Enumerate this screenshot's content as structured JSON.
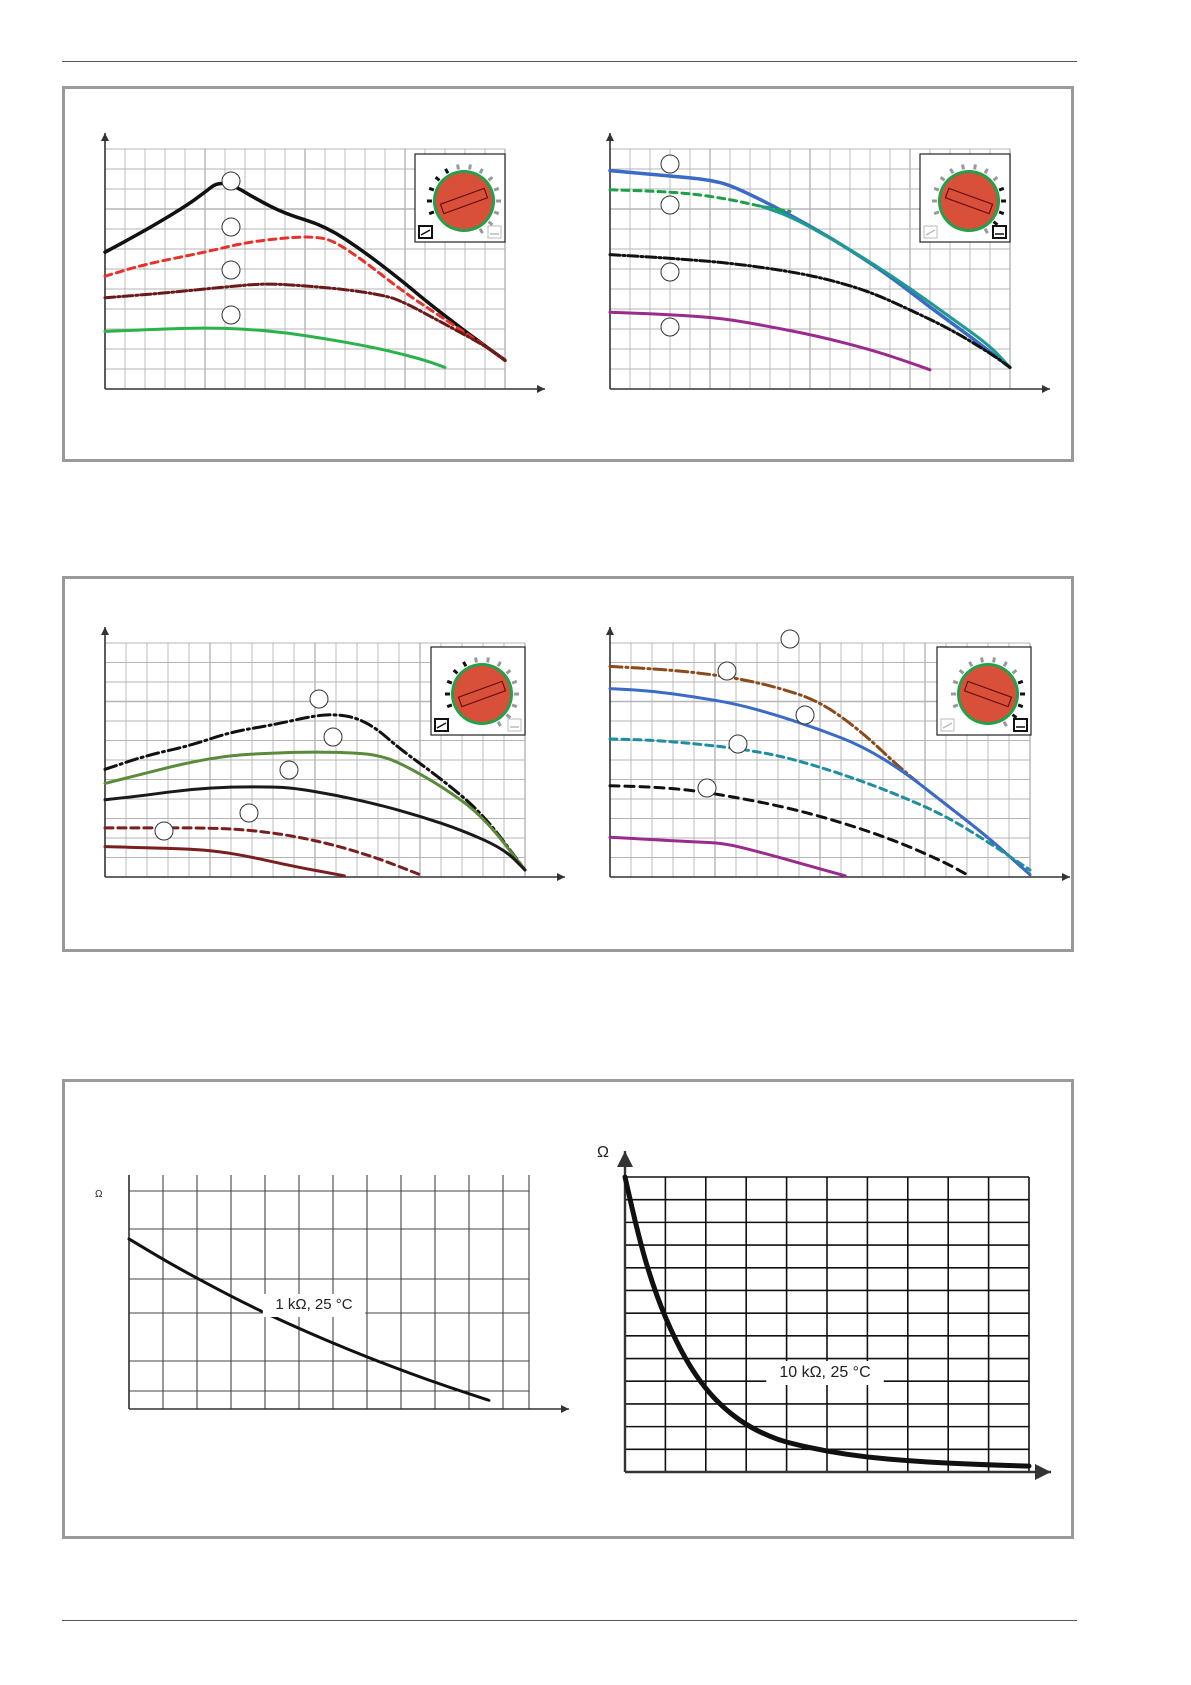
{
  "colors": {
    "frame": "#9a9a9a",
    "grid": "#b5b5b5",
    "axis": "#333333",
    "dial_red": "#d9503a",
    "dial_green": "#25a04a",
    "dial_black": "#111111"
  },
  "page": {
    "top_rule": "",
    "bottom_rule": ""
  },
  "chart_data": [
    {
      "id": "pump-proportional-pressure",
      "type": "line",
      "panel": 1,
      "markers": 4,
      "dial": {
        "icon": "proportional-pressure-icon",
        "mode": "proportional"
      },
      "series": [
        {
          "color": "#111111",
          "dash": "solid",
          "width": 3.5,
          "x": [
            0,
            10,
            20,
            25,
            28,
            32,
            38,
            45,
            55,
            65,
            75,
            80,
            90,
            100
          ],
          "y": [
            57,
            66,
            76,
            82,
            86,
            85,
            79,
            73,
            68,
            57,
            44,
            37,
            24,
            12
          ]
        },
        {
          "color": "#e8312a",
          "dash": "7,5",
          "width": 3,
          "x": [
            0,
            10,
            25,
            35,
            45,
            52,
            57,
            65,
            75,
            85,
            95,
            100
          ],
          "y": [
            47,
            52,
            57,
            61,
            63,
            63.5,
            62,
            53,
            40,
            29,
            18,
            12
          ]
        },
        {
          "color": "#6a1a1a",
          "dash": "10,3,2,3",
          "width": 3,
          "x": [
            0,
            15,
            30,
            40,
            50,
            60,
            70,
            75,
            85,
            95,
            100
          ],
          "y": [
            38,
            40,
            42.5,
            44,
            43,
            41.5,
            39,
            36,
            27,
            18,
            12
          ]
        },
        {
          "color": "#2ab24c",
          "dash": "solid",
          "width": 3,
          "x": [
            0,
            15,
            25,
            35,
            45,
            55,
            65,
            72,
            80,
            85
          ],
          "y": [
            24,
            25,
            25.5,
            25,
            23.5,
            21,
            18,
            15.5,
            12,
            9
          ]
        }
      ]
    },
    {
      "id": "pump-constant-pressure",
      "type": "line",
      "panel": 1,
      "markers": 4,
      "dial": {
        "icon": "constant-pressure-icon",
        "mode": "constant"
      },
      "series": [
        {
          "color": "#3a6bc6",
          "dash": "solid",
          "width": 3.5,
          "x": [
            0,
            10,
            20,
            25,
            30,
            40,
            50,
            60,
            70,
            80,
            90,
            100
          ],
          "y": [
            91,
            89.5,
            88,
            87,
            85,
            77,
            68,
            58,
            47,
            34,
            22,
            9
          ]
        },
        {
          "color": "#1ea04a",
          "dash": "7,5",
          "width": 3,
          "x": [
            0,
            10,
            20,
            30,
            38,
            45
          ],
          "y": [
            83,
            82.5,
            81.5,
            79,
            76,
            74
          ]
        },
        {
          "color": "#1f9a8f",
          "dash": "solid",
          "width": 3,
          "x": [
            38,
            45,
            55,
            65,
            75,
            85,
            95,
            100
          ],
          "y": [
            76,
            72,
            63,
            53,
            42,
            30,
            18,
            9
          ]
        },
        {
          "color": "#111111",
          "dash": "10,3,2,3",
          "width": 3,
          "x": [
            0,
            15,
            30,
            45,
            55,
            65,
            75,
            85,
            95,
            100
          ],
          "y": [
            56,
            54.5,
            52.5,
            49,
            45.5,
            40.5,
            33,
            25,
            15,
            9
          ]
        },
        {
          "color": "#9a2a8c",
          "dash": "solid",
          "width": 3,
          "x": [
            0,
            15,
            28,
            40,
            52,
            65,
            75,
            80
          ],
          "y": [
            32,
            31,
            29.5,
            26,
            22,
            16.5,
            11,
            8
          ]
        }
      ]
    },
    {
      "id": "pump-proportional-pressure-ext",
      "type": "line",
      "panel": 2,
      "markers": 5,
      "dial": {
        "icon": "proportional-pressure-icon",
        "mode": "proportional"
      },
      "series": [
        {
          "color": "#111111",
          "dash": "12,4,2,4",
          "width": 3,
          "x": [
            0,
            10,
            20,
            30,
            40,
            50,
            55,
            60,
            65,
            70,
            80,
            90,
            100
          ],
          "y": [
            46,
            52,
            56,
            62,
            65,
            69,
            69.5,
            68,
            63,
            55,
            42,
            27,
            3
          ]
        },
        {
          "color": "#5a8a3a",
          "dash": "solid",
          "width": 3,
          "x": [
            0,
            10,
            20,
            30,
            40,
            50,
            60,
            65,
            70,
            80,
            90,
            100
          ],
          "y": [
            40,
            44.5,
            49,
            52,
            53,
            53.5,
            53,
            52,
            49,
            39,
            26,
            3
          ]
        },
        {
          "color": "#1a1a1a",
          "dash": "solid",
          "width": 3,
          "x": [
            0,
            10,
            20,
            30,
            40,
            45,
            55,
            65,
            75,
            85,
            95,
            100
          ],
          "y": [
            33,
            35,
            37.5,
            38.5,
            38.5,
            38,
            35,
            31,
            26,
            20,
            12,
            3
          ]
        },
        {
          "color": "#7a1f1f",
          "dash": "8,5",
          "width": 3,
          "x": [
            0,
            10,
            25,
            35,
            45,
            55,
            65,
            75
          ],
          "y": [
            21,
            21,
            21,
            20,
            17.5,
            13.5,
            8,
            1
          ]
        },
        {
          "color": "#7a1f1f",
          "dash": "solid",
          "width": 3,
          "x": [
            0,
            10,
            20,
            27,
            35,
            45,
            57
          ],
          "y": [
            13,
            12.5,
            12,
            11,
            8.5,
            4.5,
            0.5
          ]
        }
      ]
    },
    {
      "id": "pump-constant-pressure-ext",
      "type": "line",
      "panel": 2,
      "markers": 5,
      "dial": {
        "icon": "constant-pressure-icon",
        "mode": "constant"
      },
      "series": [
        {
          "color": "#8a4a1a",
          "dash": "12,4,2,4",
          "width": 3,
          "x": [
            0,
            10,
            20,
            30,
            40,
            50,
            60,
            70,
            80,
            90,
            100
          ],
          "y": [
            90,
            89,
            87.5,
            85,
            81,
            75,
            62,
            45,
            31,
            17,
            1
          ]
        },
        {
          "color": "#3a6bc6",
          "dash": "solid",
          "width": 3,
          "x": [
            0,
            10,
            20,
            30,
            40,
            50,
            60,
            70,
            80,
            90,
            100
          ],
          "y": [
            80.5,
            79.5,
            77,
            74,
            69,
            63,
            56,
            45,
            31,
            17,
            1
          ]
        },
        {
          "color": "#1f8fa0",
          "dash": "7,5",
          "width": 3,
          "x": [
            0,
            10,
            20,
            30,
            40,
            50,
            60,
            70,
            80,
            90,
            100
          ],
          "y": [
            59,
            58.5,
            57,
            55,
            52,
            47,
            41,
            34,
            26,
            15,
            3
          ]
        },
        {
          "color": "#111111",
          "dash": "9,6",
          "width": 3,
          "x": [
            0,
            10,
            20,
            30,
            40,
            50,
            60,
            70,
            80,
            85
          ],
          "y": [
            39,
            38.5,
            37,
            34,
            30.5,
            26,
            20.5,
            14,
            6,
            1
          ]
        },
        {
          "color": "#9a2a8c",
          "dash": "solid",
          "width": 3,
          "x": [
            0,
            10,
            20,
            27,
            35,
            45,
            56
          ],
          "y": [
            17,
            16,
            15,
            14.5,
            11,
            6,
            0.5
          ]
        }
      ]
    },
    {
      "id": "ntc-1k",
      "type": "line",
      "panel": 3,
      "curve_label": "1 kΩ, 25 °C",
      "y_axis_label": "Ω",
      "series": [
        {
          "color": "#111111",
          "dash": "solid",
          "width": 3,
          "x": [
            0,
            10,
            20,
            30,
            40,
            50,
            60,
            70,
            80,
            90
          ],
          "y": [
            78,
            67,
            57,
            47.5,
            39,
            31,
            23.5,
            16.5,
            10,
            4
          ]
        }
      ]
    },
    {
      "id": "ntc-10k",
      "type": "line",
      "panel": 3,
      "curve_label": "10 kΩ, 25 °C",
      "y_axis_label": "Ω",
      "series": [
        {
          "color": "#111111",
          "dash": "solid",
          "width": 5,
          "x": [
            0,
            3,
            6,
            10,
            15,
            20,
            25,
            30,
            35,
            40,
            50,
            60,
            70,
            80,
            90,
            100
          ],
          "y": [
            100,
            82,
            67,
            52,
            38,
            28,
            21,
            16,
            12.5,
            10,
            7,
            5,
            3.8,
            3,
            2.4,
            2
          ]
        }
      ]
    }
  ]
}
